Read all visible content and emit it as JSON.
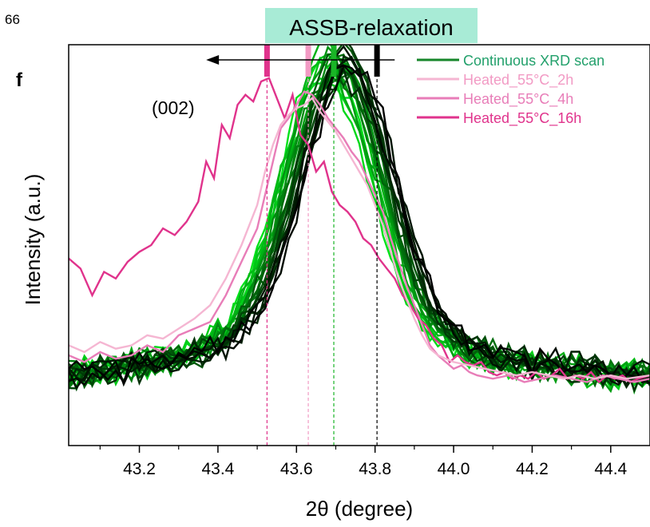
{
  "page_number": "66",
  "panel_label": "f",
  "title_box": {
    "text": "ASSB-relaxation",
    "color": "#a8ebd6"
  },
  "peak_label": "(002)",
  "chart_data": {
    "type": "line",
    "title": "",
    "xlabel": "2θ (degree)",
    "ylabel": "Intensity (a.u.)",
    "xlim": [
      43.02,
      44.5
    ],
    "ylim": [
      0,
      1.2
    ],
    "x_ticks": [
      "43.2",
      "43.4",
      "43.6",
      "43.8",
      "44.0",
      "44.2",
      "44.4"
    ],
    "x_tick_values": [
      43.2,
      43.4,
      43.6,
      43.8,
      44.0,
      44.2,
      44.4
    ],
    "y_ticks_shown": false,
    "grid": false,
    "legend": {
      "placement": "top-right",
      "entries": [
        {
          "label": "Continuous XRD scan",
          "color": "#16862a",
          "text_color": "#22a06b"
        },
        {
          "label": "Heated_55°C_2h",
          "color": "#f5b6d2",
          "text_color": "#f29ac4"
        },
        {
          "label": "Heated_55°C_4h",
          "color": "#e87db8",
          "text_color": "#e87db8"
        },
        {
          "label": "Heated_55°C_16h",
          "color": "#e0338c",
          "text_color": "#e0338c"
        }
      ]
    },
    "peak_markers": [
      {
        "x": 43.525,
        "color": "#e0338c"
      },
      {
        "x": 43.63,
        "color": "#f29ac4"
      },
      {
        "x": 43.695,
        "color": "#19b526"
      },
      {
        "x": 43.805,
        "color": "#000000"
      }
    ],
    "shift_arrow": {
      "from": 43.85,
      "to": 43.37,
      "direction": "left"
    },
    "series": [
      {
        "name": "Heated_55°C_16h",
        "color": "#e0338c",
        "x": [
          43.02,
          43.05,
          43.08,
          43.11,
          43.14,
          43.17,
          43.2,
          43.23,
          43.26,
          43.29,
          43.32,
          43.35,
          43.37,
          43.39,
          43.41,
          43.43,
          43.45,
          43.47,
          43.49,
          43.51,
          43.53,
          43.55,
          43.57,
          43.59,
          43.61,
          43.63,
          43.65,
          43.67,
          43.69,
          43.71,
          43.73,
          43.75,
          43.77,
          43.79,
          43.81,
          43.83,
          43.85,
          43.87,
          43.89,
          43.91,
          43.93,
          43.95,
          43.97,
          43.99,
          44.01,
          44.03,
          44.05,
          44.07,
          44.09,
          44.11,
          44.13,
          44.15,
          44.17,
          44.19,
          44.21,
          44.23,
          44.25,
          44.27,
          44.29,
          44.31,
          44.33,
          44.35,
          44.37,
          44.39,
          44.41,
          44.43,
          44.45,
          44.47,
          44.5
        ],
        "y": [
          0.56,
          0.53,
          0.45,
          0.52,
          0.5,
          0.55,
          0.58,
          0.6,
          0.65,
          0.63,
          0.67,
          0.73,
          0.85,
          0.8,
          0.96,
          0.92,
          1.02,
          1.05,
          1.03,
          1.09,
          1.1,
          1.04,
          0.98,
          1.05,
          0.93,
          0.9,
          0.82,
          0.85,
          0.76,
          0.72,
          0.7,
          0.67,
          0.62,
          0.6,
          0.56,
          0.53,
          0.5,
          0.45,
          0.42,
          0.38,
          0.36,
          0.32,
          0.3,
          0.25,
          0.27,
          0.25,
          0.24,
          0.25,
          0.22,
          0.21,
          0.22,
          0.2,
          0.21,
          0.2,
          0.22,
          0.2,
          0.21,
          0.23,
          0.2,
          0.21,
          0.2,
          0.22,
          0.19,
          0.21,
          0.2,
          0.21,
          0.19,
          0.2,
          0.21
        ]
      },
      {
        "name": "Heated_55°C_4h",
        "color": "#e87db8",
        "x": [
          43.02,
          43.06,
          43.1,
          43.14,
          43.18,
          43.22,
          43.26,
          43.3,
          43.34,
          43.38,
          43.42,
          43.46,
          43.5,
          43.52,
          43.54,
          43.56,
          43.58,
          43.6,
          43.62,
          43.64,
          43.66,
          43.68,
          43.7,
          43.72,
          43.74,
          43.76,
          43.78,
          43.8,
          43.82,
          43.84,
          43.86,
          43.88,
          43.9,
          43.92,
          43.94,
          43.96,
          43.98,
          44.0,
          44.02,
          44.04,
          44.06,
          44.1,
          44.14,
          44.18,
          44.22,
          44.26,
          44.3,
          44.34,
          44.38,
          44.42,
          44.46,
          44.5
        ],
        "y": [
          0.27,
          0.25,
          0.28,
          0.26,
          0.27,
          0.3,
          0.28,
          0.33,
          0.35,
          0.37,
          0.45,
          0.55,
          0.65,
          0.75,
          0.85,
          0.95,
          0.98,
          1.02,
          1.06,
          1.05,
          1.02,
          0.98,
          0.95,
          0.92,
          0.88,
          0.85,
          0.8,
          0.75,
          0.7,
          0.62,
          0.55,
          0.48,
          0.42,
          0.36,
          0.3,
          0.27,
          0.25,
          0.23,
          0.24,
          0.22,
          0.21,
          0.2,
          0.21,
          0.19,
          0.2,
          0.21,
          0.2,
          0.19,
          0.21,
          0.2,
          0.19,
          0.2
        ]
      },
      {
        "name": "Heated_55°C_2h",
        "color": "#f5b6d2",
        "x": [
          43.02,
          43.06,
          43.1,
          43.14,
          43.18,
          43.22,
          43.26,
          43.3,
          43.34,
          43.38,
          43.42,
          43.46,
          43.5,
          43.52,
          43.54,
          43.56,
          43.58,
          43.6,
          43.62,
          43.64,
          43.66,
          43.68,
          43.7,
          43.72,
          43.74,
          43.76,
          43.78,
          43.8,
          43.82,
          43.84,
          43.86,
          43.88,
          43.9,
          43.92,
          43.94,
          43.96,
          43.98,
          44.0,
          44.04,
          44.08,
          44.12,
          44.16,
          44.2,
          44.24,
          44.28,
          44.32,
          44.36,
          44.4,
          44.44,
          44.5
        ],
        "y": [
          0.3,
          0.28,
          0.31,
          0.29,
          0.3,
          0.33,
          0.32,
          0.35,
          0.38,
          0.42,
          0.5,
          0.6,
          0.72,
          0.82,
          0.9,
          0.96,
          0.99,
          1.01,
          1.02,
          1.04,
          1.0,
          0.97,
          0.94,
          0.9,
          0.86,
          0.82,
          0.78,
          0.72,
          0.66,
          0.58,
          0.5,
          0.44,
          0.38,
          0.33,
          0.29,
          0.27,
          0.26,
          0.25,
          0.24,
          0.23,
          0.22,
          0.21,
          0.22,
          0.21,
          0.2,
          0.21,
          0.2,
          0.21,
          0.2,
          0.21
        ]
      }
    ],
    "continuous_scan_family": {
      "name": "Continuous XRD scan",
      "count": 24,
      "center_start": 43.67,
      "center_end": 43.74,
      "colors_from": "#00e21a",
      "colors_to": "#000000"
    }
  }
}
